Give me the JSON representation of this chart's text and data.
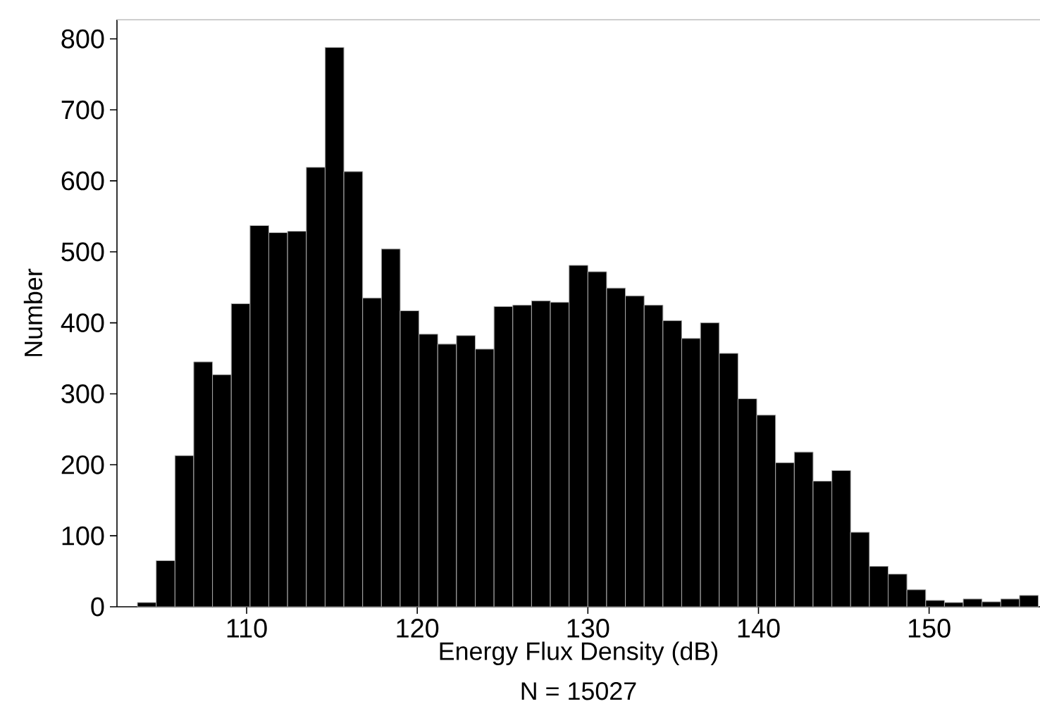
{
  "chart_data": {
    "type": "histogram",
    "xlabel": "Energy Flux Density (dB)",
    "ylabel": "Number",
    "annotations": [
      "N = 15027"
    ],
    "bins": [
      103.6,
      104.7,
      105.8,
      106.9,
      108.0,
      109.1,
      110.2,
      111.3,
      112.4,
      113.5,
      114.6,
      115.7,
      116.8,
      117.9,
      119.0,
      120.1,
      121.2,
      122.3,
      123.4,
      124.5,
      125.6,
      126.7,
      127.8,
      128.9,
      130.0,
      131.1,
      132.2,
      133.3,
      134.4,
      135.5,
      136.6,
      137.7,
      138.8,
      139.9,
      141.0,
      142.1,
      143.2,
      144.3,
      145.4,
      146.5,
      147.6,
      148.7,
      149.8,
      150.9,
      152.0,
      153.1,
      154.2,
      155.3,
      156.4
    ],
    "values": [
      6,
      65,
      213,
      345,
      327,
      427,
      537,
      527,
      529,
      619,
      788,
      613,
      435,
      504,
      417,
      384,
      370,
      382,
      363,
      423,
      425,
      431,
      429,
      481,
      472,
      449,
      438,
      425,
      403,
      378,
      400,
      357,
      293,
      270,
      203,
      218,
      177,
      192,
      105,
      57,
      46,
      24,
      9,
      6,
      11,
      7,
      11,
      16
    ],
    "color": "#000000",
    "xlim": [
      102.4,
      156.5
    ],
    "ylim": [
      0,
      827
    ],
    "xticks": [
      110,
      120,
      130,
      140,
      150
    ],
    "yticks": [
      0,
      100,
      200,
      300,
      400,
      500,
      600,
      700,
      800
    ],
    "grid": false
  }
}
